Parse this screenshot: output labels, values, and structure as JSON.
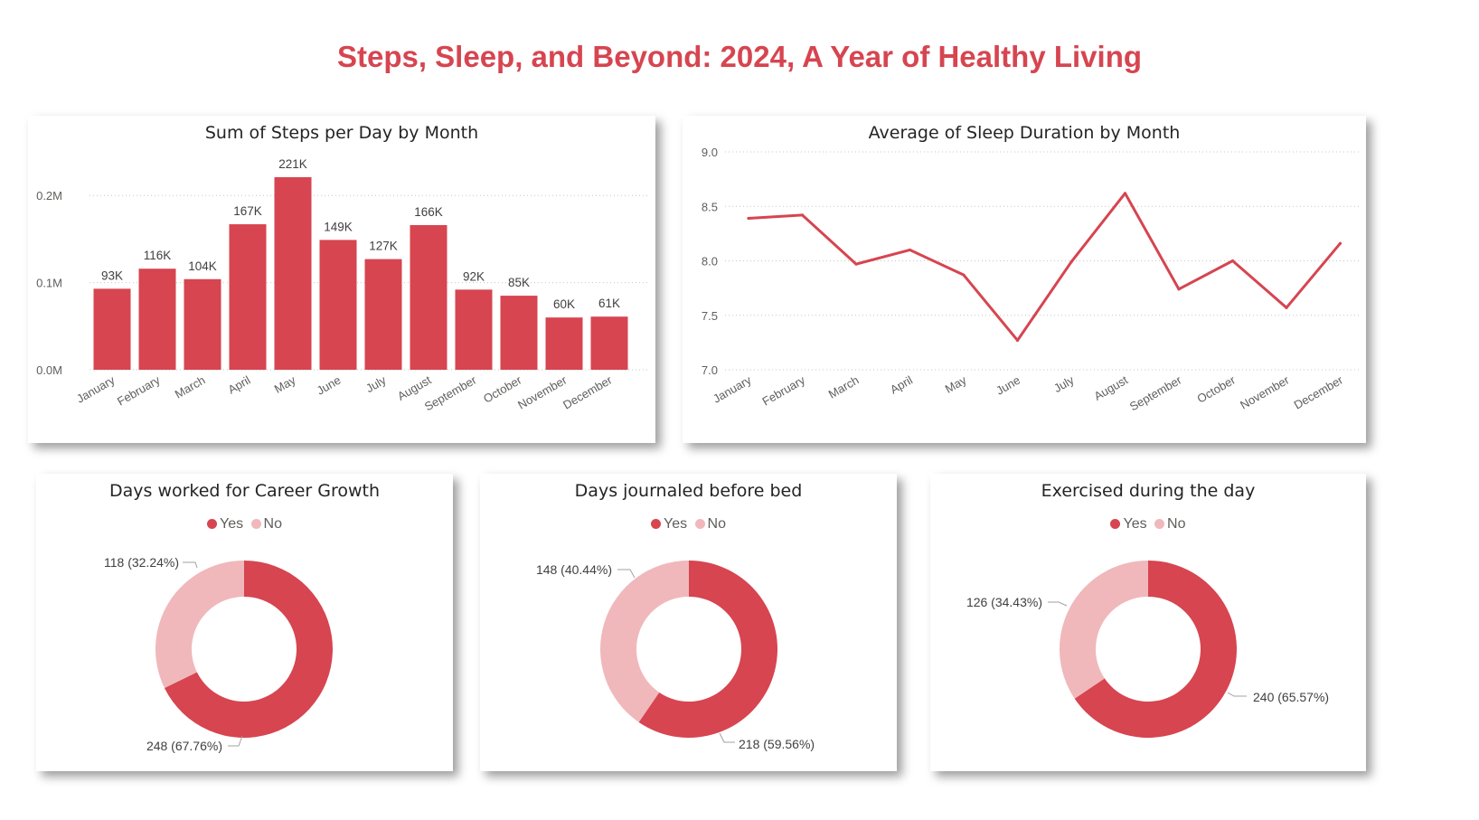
{
  "page": {
    "title": "Steps, Sleep, and Beyond: 2024, A Year of Healthy Living"
  },
  "colors": {
    "primary": "#d64550",
    "secondary": "#f0b8bb",
    "grid": "#c8c6c4"
  },
  "chart_data": [
    {
      "id": "steps",
      "type": "bar",
      "title": "Sum of Steps per Day by Month",
      "categories": [
        "January",
        "February",
        "March",
        "April",
        "May",
        "June",
        "July",
        "August",
        "September",
        "October",
        "November",
        "December"
      ],
      "values": [
        93000,
        116000,
        104000,
        167000,
        221000,
        149000,
        127000,
        166000,
        92000,
        85000,
        60000,
        61000
      ],
      "data_labels": [
        "93K",
        "116K",
        "104K",
        "167K",
        "221K",
        "149K",
        "127K",
        "166K",
        "92K",
        "85K",
        "60K",
        "61K"
      ],
      "yticks": [
        0,
        100000,
        200000
      ],
      "ytick_labels": [
        "0.0M",
        "0.1M",
        "0.2M"
      ],
      "ylim": [
        0,
        221000
      ],
      "grid": true
    },
    {
      "id": "sleep",
      "type": "line",
      "title": "Average of Sleep Duration by Month",
      "categories": [
        "January",
        "February",
        "March",
        "April",
        "May",
        "June",
        "July",
        "August",
        "September",
        "October",
        "November",
        "December"
      ],
      "values": [
        8.39,
        8.42,
        7.97,
        8.1,
        7.87,
        7.27,
        7.99,
        8.62,
        7.74,
        8.0,
        7.57,
        8.16
      ],
      "yticks": [
        7.0,
        7.5,
        8.0,
        8.5,
        9.0
      ],
      "ytick_labels": [
        "7.0",
        "7.5",
        "8.0",
        "8.5",
        "9.0"
      ],
      "ylim": [
        7.0,
        9.0
      ],
      "grid": true
    },
    {
      "id": "career",
      "type": "pie",
      "title": "Days worked for Career Growth",
      "legend": [
        "Yes",
        "No"
      ],
      "values": [
        248,
        118
      ],
      "labels": [
        "248 (67.76%)",
        "118 (32.24%)"
      ]
    },
    {
      "id": "journal",
      "type": "pie",
      "title": "Days journaled before bed",
      "legend": [
        "Yes",
        "No"
      ],
      "values": [
        218,
        148
      ],
      "labels": [
        "218 (59.56%)",
        "148 (40.44%)"
      ]
    },
    {
      "id": "exercise",
      "type": "pie",
      "title": "Exercised during the day",
      "legend": [
        "Yes",
        "No"
      ],
      "values": [
        240,
        126
      ],
      "labels": [
        "240 (65.57%)",
        "126 (34.43%)"
      ]
    }
  ]
}
